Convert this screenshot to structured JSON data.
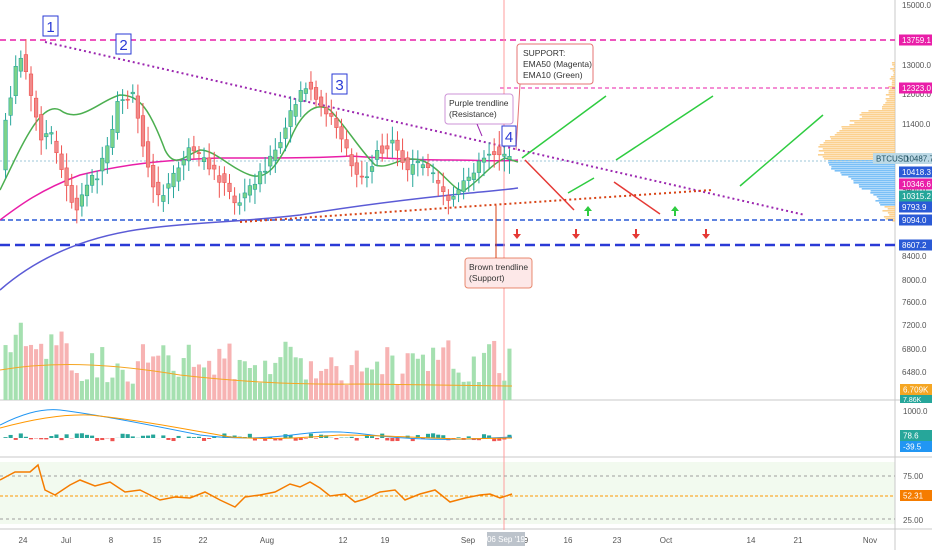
{
  "chart_data": {
    "type": "candlestick",
    "symbol_label": "BTCUSD",
    "last_price_label": "10487.7",
    "y_ticks": [
      "15000.0",
      "14000.0",
      "13000.0",
      "12000.0",
      "11400.0",
      "10400.0",
      "9400.0",
      "8400.0",
      "8000.0",
      "7600.0",
      "7200.0",
      "6800.0",
      "6480.0"
    ],
    "price_levels": [
      {
        "value": "13759.1",
        "color": "#e91ea8"
      },
      {
        "value": "12323.0",
        "color": "#e91ea8"
      },
      {
        "value": "10418.3",
        "color": "#2a5ad6"
      },
      {
        "value": "10346.6",
        "color": "#e91ea8"
      },
      {
        "value": "10315.2",
        "color": "#26a69a"
      },
      {
        "value": "9793.9",
        "color": "#2a5ad6"
      },
      {
        "value": "9094.0",
        "color": "#2a5ad6"
      },
      {
        "value": "8607.2",
        "color": "#2a5ad6"
      }
    ],
    "x_ticks": [
      "24",
      "Jul",
      "8",
      "15",
      "22",
      "Aug",
      "12",
      "19",
      "Sep",
      "9",
      "16",
      "23",
      "Oct",
      "14",
      "21",
      "Nov"
    ],
    "x_highlight": "06 Sep '19",
    "wave_labels": [
      "1",
      "2",
      "3",
      "4"
    ],
    "annotations": {
      "support_box": [
        "SUPPORT:",
        "EMA50 (Magenta)",
        "EMA10 (Green)"
      ],
      "purple_box": [
        "Purple trendline",
        "(Resistance)"
      ],
      "brown_box": [
        "Brown trendline",
        "(Support)"
      ]
    },
    "volume_labels": [
      "6.709K",
      "7.86K"
    ],
    "macd": {
      "ticks": [
        "1000.0"
      ],
      "values": [
        "78.6",
        "-39.5"
      ]
    },
    "rsi": {
      "ticks": [
        "75.00",
        "25.00"
      ],
      "value": "52.31"
    },
    "colors": {
      "up": "#26a69a",
      "down": "#ef5350",
      "ema10": "#4caf50",
      "ema50": "#e91ea8",
      "ema200": "#5b5bd6",
      "purple_trend": "#9c27b0",
      "brown_trend": "#d84315",
      "arrow_up": "#2ecc40",
      "arrow_down": "#e53935"
    }
  }
}
